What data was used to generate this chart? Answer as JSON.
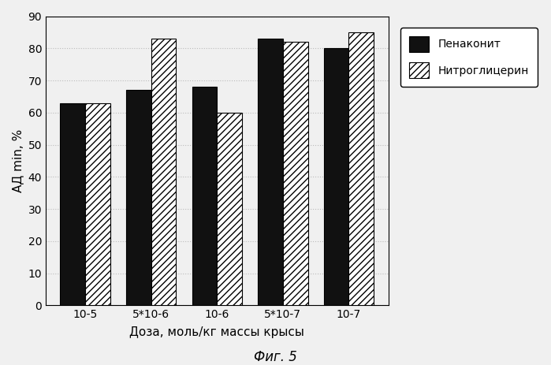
{
  "categories": [
    "10-5",
    "5*10-6",
    "10-6",
    "5*10-7",
    "10-7"
  ],
  "penakonit": [
    63,
    67,
    68,
    83,
    80
  ],
  "nitroglycerin": [
    63,
    83,
    60,
    82,
    85
  ],
  "ylabel": "АД min, %",
  "xlabel": "Доза, моль/кг массы крысы",
  "caption": "Фиг. 5",
  "ylim": [
    0,
    90
  ],
  "yticks": [
    0,
    10,
    20,
    30,
    40,
    50,
    60,
    70,
    80,
    90
  ],
  "legend_penakonit": "Пенаконит",
  "legend_nitroglycerin": "Нитроглицерин",
  "bar_color_penakonit": "#111111",
  "bar_color_nitroglycerin": "#ffffff",
  "background_color": "#f0f0f0",
  "bar_width": 0.38,
  "hatch_nitroglycerin": "////",
  "grid_color": "#bbbbbb",
  "grid_linestyle": ":",
  "fontsize_ticks": 10,
  "fontsize_label": 11,
  "fontsize_caption": 12
}
